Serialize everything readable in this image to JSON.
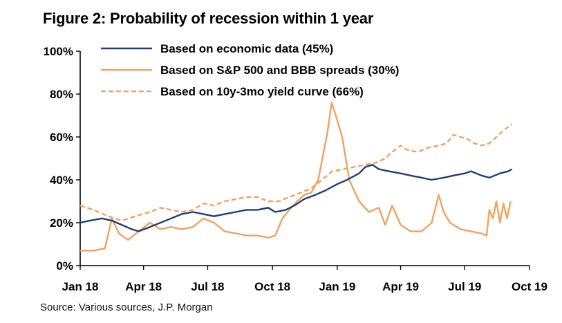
{
  "title": "Figure 2: Probability of recession within 1 year",
  "source": "Source: Various sources, J.P. Morgan",
  "chart_data": {
    "type": "line",
    "title": "Figure 2: Probability of recession within 1 year",
    "xlabel": "",
    "ylabel": "",
    "ylim": [
      0,
      100
    ],
    "y_ticks": [
      "0%",
      "20%",
      "40%",
      "60%",
      "80%",
      "100%"
    ],
    "x_ticks": [
      {
        "label": "Jan 18",
        "x": "2018-01-01"
      },
      {
        "label": "Apr 18",
        "x": "2018-04-01"
      },
      {
        "label": "Jul 18",
        "x": "2018-07-01"
      },
      {
        "label": "Oct 18",
        "x": "2018-10-01"
      },
      {
        "label": "Jan 19",
        "x": "2019-01-01"
      },
      {
        "label": "Apr 19",
        "x": "2019-04-01"
      },
      {
        "label": "Jul 19",
        "x": "2019-07-01"
      },
      {
        "label": "Oct 19",
        "x": "2019-10-01"
      }
    ],
    "xlim": [
      "2018-01-01",
      "2019-10-01"
    ],
    "grid": false,
    "legend_position": "top-left",
    "series": [
      {
        "name": "Based on economic data (45%)",
        "color": "#1f3d7a",
        "style": "solid",
        "points": [
          [
            "2018-01-01",
            20
          ],
          [
            "2018-01-15",
            21
          ],
          [
            "2018-02-01",
            22
          ],
          [
            "2018-02-15",
            21
          ],
          [
            "2018-03-01",
            19
          ],
          [
            "2018-03-15",
            17
          ],
          [
            "2018-03-25",
            16
          ],
          [
            "2018-04-10",
            18
          ],
          [
            "2018-04-25",
            20
          ],
          [
            "2018-05-10",
            22
          ],
          [
            "2018-05-25",
            24
          ],
          [
            "2018-06-10",
            25
          ],
          [
            "2018-06-25",
            24
          ],
          [
            "2018-07-10",
            23
          ],
          [
            "2018-07-25",
            24
          ],
          [
            "2018-08-10",
            25
          ],
          [
            "2018-08-25",
            26
          ],
          [
            "2018-09-10",
            26
          ],
          [
            "2018-09-25",
            27
          ],
          [
            "2018-10-05",
            25
          ],
          [
            "2018-10-20",
            26
          ],
          [
            "2018-11-01",
            28
          ],
          [
            "2018-11-15",
            31
          ],
          [
            "2018-12-01",
            33
          ],
          [
            "2018-12-15",
            35
          ],
          [
            "2019-01-01",
            38
          ],
          [
            "2019-01-15",
            40
          ],
          [
            "2019-02-01",
            43
          ],
          [
            "2019-02-10",
            46
          ],
          [
            "2019-02-20",
            47
          ],
          [
            "2019-03-01",
            45
          ],
          [
            "2019-03-15",
            44
          ],
          [
            "2019-04-01",
            43
          ],
          [
            "2019-04-15",
            42
          ],
          [
            "2019-05-01",
            41
          ],
          [
            "2019-05-15",
            40
          ],
          [
            "2019-06-01",
            41
          ],
          [
            "2019-06-15",
            42
          ],
          [
            "2019-07-01",
            43
          ],
          [
            "2019-07-10",
            44
          ],
          [
            "2019-07-25",
            42
          ],
          [
            "2019-08-05",
            41
          ],
          [
            "2019-08-20",
            43
          ],
          [
            "2019-09-01",
            44
          ],
          [
            "2019-09-06",
            45
          ]
        ]
      },
      {
        "name": "Based on S&P 500 and BBB spreads (30%)",
        "color": "#f2a25c",
        "style": "solid",
        "points": [
          [
            "2018-01-01",
            7
          ],
          [
            "2018-01-20",
            7
          ],
          [
            "2018-02-05",
            8
          ],
          [
            "2018-02-15",
            22
          ],
          [
            "2018-02-25",
            15
          ],
          [
            "2018-03-10",
            12
          ],
          [
            "2018-03-25",
            16
          ],
          [
            "2018-04-10",
            20
          ],
          [
            "2018-04-25",
            17
          ],
          [
            "2018-05-10",
            18
          ],
          [
            "2018-05-25",
            17
          ],
          [
            "2018-06-10",
            18
          ],
          [
            "2018-06-25",
            22
          ],
          [
            "2018-07-10",
            20
          ],
          [
            "2018-07-25",
            16
          ],
          [
            "2018-08-10",
            15
          ],
          [
            "2018-08-25",
            14
          ],
          [
            "2018-09-10",
            14
          ],
          [
            "2018-09-25",
            13
          ],
          [
            "2018-10-05",
            14
          ],
          [
            "2018-10-15",
            22
          ],
          [
            "2018-10-25",
            26
          ],
          [
            "2018-11-05",
            30
          ],
          [
            "2018-11-15",
            33
          ],
          [
            "2018-11-25",
            34
          ],
          [
            "2018-12-05",
            40
          ],
          [
            "2018-12-12",
            52
          ],
          [
            "2018-12-18",
            62
          ],
          [
            "2018-12-24",
            76
          ],
          [
            "2018-12-30",
            70
          ],
          [
            "2019-01-08",
            60
          ],
          [
            "2019-01-18",
            40
          ],
          [
            "2019-02-01",
            30
          ],
          [
            "2019-02-15",
            25
          ],
          [
            "2019-03-01",
            27
          ],
          [
            "2019-03-10",
            19
          ],
          [
            "2019-03-20",
            28
          ],
          [
            "2019-04-01",
            19
          ],
          [
            "2019-04-15",
            16
          ],
          [
            "2019-05-01",
            16
          ],
          [
            "2019-05-15",
            20
          ],
          [
            "2019-05-25",
            33
          ],
          [
            "2019-06-01",
            25
          ],
          [
            "2019-06-10",
            20
          ],
          [
            "2019-06-25",
            17
          ],
          [
            "2019-07-10",
            16
          ],
          [
            "2019-07-25",
            15
          ],
          [
            "2019-08-01",
            14
          ],
          [
            "2019-08-05",
            26
          ],
          [
            "2019-08-10",
            22
          ],
          [
            "2019-08-15",
            30
          ],
          [
            "2019-08-20",
            20
          ],
          [
            "2019-08-25",
            29
          ],
          [
            "2019-08-30",
            22
          ],
          [
            "2019-09-04",
            30
          ]
        ]
      },
      {
        "name": "Based on 10y-3mo yield curve (66%)",
        "color": "#f2a25c",
        "style": "dashed",
        "points": [
          [
            "2018-01-01",
            28
          ],
          [
            "2018-01-20",
            26
          ],
          [
            "2018-02-10",
            23
          ],
          [
            "2018-03-01",
            21
          ],
          [
            "2018-03-20",
            23
          ],
          [
            "2018-04-10",
            25
          ],
          [
            "2018-04-25",
            27
          ],
          [
            "2018-05-10",
            26
          ],
          [
            "2018-05-25",
            25
          ],
          [
            "2018-06-10",
            26
          ],
          [
            "2018-06-25",
            29
          ],
          [
            "2018-07-10",
            28
          ],
          [
            "2018-07-25",
            30
          ],
          [
            "2018-08-10",
            31
          ],
          [
            "2018-08-25",
            32
          ],
          [
            "2018-09-10",
            32
          ],
          [
            "2018-09-25",
            30
          ],
          [
            "2018-10-10",
            30
          ],
          [
            "2018-10-25",
            32
          ],
          [
            "2018-11-10",
            34
          ],
          [
            "2018-11-25",
            36
          ],
          [
            "2018-12-10",
            40
          ],
          [
            "2018-12-25",
            44
          ],
          [
            "2019-01-10",
            45
          ],
          [
            "2019-01-25",
            46
          ],
          [
            "2019-02-10",
            47
          ],
          [
            "2019-02-25",
            48
          ],
          [
            "2019-03-10",
            50
          ],
          [
            "2019-03-20",
            53
          ],
          [
            "2019-04-01",
            56
          ],
          [
            "2019-04-10",
            54
          ],
          [
            "2019-04-25",
            53
          ],
          [
            "2019-05-10",
            55
          ],
          [
            "2019-05-25",
            56
          ],
          [
            "2019-06-05",
            57
          ],
          [
            "2019-06-15",
            61
          ],
          [
            "2019-06-25",
            60
          ],
          [
            "2019-07-05",
            59
          ],
          [
            "2019-07-15",
            57
          ],
          [
            "2019-07-25",
            56
          ],
          [
            "2019-08-05",
            57
          ],
          [
            "2019-08-15",
            60
          ],
          [
            "2019-08-25",
            63
          ],
          [
            "2019-09-06",
            66
          ]
        ]
      }
    ]
  }
}
